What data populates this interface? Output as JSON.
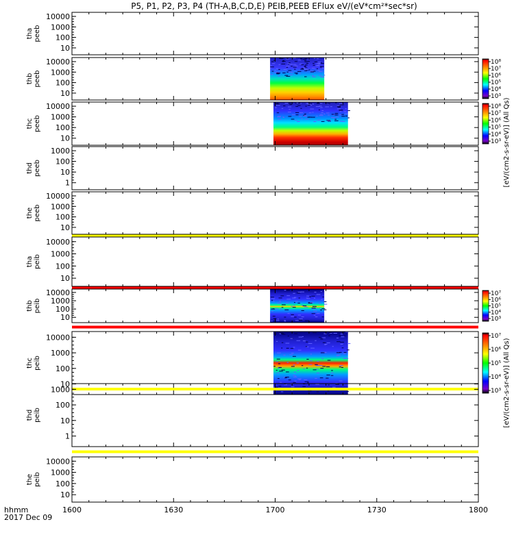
{
  "chart_data": {
    "type": "heatmap",
    "title": "P5, P1, P2, P3, P4 (TH-A,B,C,D,E) PEIB,PEEB EFlux eV/(eV*cm²*sec*sr)",
    "time_axis": {
      "label_line1": "hhmm",
      "label_line2": "2017 Dec 09",
      "ticks": [
        "1600",
        "1630",
        "1700",
        "1730",
        "1800"
      ],
      "range_minutes": [
        0,
        120
      ]
    },
    "colorbar_labels": {
      "electron": "[eV/(cm2-s-sr-eV)] (All Qs)",
      "ion": "[eV/(cm2-s-sr-eV)] (All Qs)"
    },
    "panels": [
      {
        "label": [
          "tha",
          "peeb"
        ],
        "yticks": [
          "10000",
          "1000",
          "100",
          "10"
        ],
        "blocks": [],
        "colorbar": null
      },
      {
        "label": [
          "thb",
          "peeb"
        ],
        "yticks": [
          "10000",
          "1000",
          "100",
          "10"
        ],
        "blocks": [
          {
            "start_min": 58.5,
            "end_min": 74.5,
            "palette": "electron_b"
          }
        ],
        "colorbar": {
          "ticks": [
            "10⁸",
            "10⁷",
            "10⁶",
            "10⁵",
            "10⁴",
            "10³"
          ]
        }
      },
      {
        "label": [
          "thc",
          "peeb"
        ],
        "yticks": [
          "10000",
          "1000",
          "100",
          "10"
        ],
        "blocks": [
          {
            "start_min": 59.5,
            "end_min": 81.5,
            "palette": "electron_c"
          }
        ],
        "colorbar": {
          "ticks": [
            "10⁸",
            "10⁷",
            "10⁶",
            "10⁵",
            "10⁴",
            "10³"
          ]
        }
      },
      {
        "label": [
          "thd",
          "peeb"
        ],
        "yticks": [
          "1000",
          "100",
          "10",
          "1"
        ],
        "blocks": [],
        "colorbar": null
      },
      {
        "label": [
          "the",
          "peeb"
        ],
        "yticks": [
          "10000",
          "1000",
          "100",
          "10"
        ],
        "blocks": [],
        "colorbar": null,
        "band_below": "#ffff00"
      },
      {
        "label": [
          "tha",
          "peib"
        ],
        "yticks": [
          "10000",
          "1000",
          "100",
          "10"
        ],
        "blocks": [],
        "colorbar": null,
        "band_below": "#ff0000"
      },
      {
        "label": [
          "thb",
          "peib"
        ],
        "yticks": [
          "10000",
          "1000",
          "100",
          "10"
        ],
        "blocks": [
          {
            "start_min": 58.5,
            "end_min": 74.5,
            "palette": "ion_b"
          }
        ],
        "colorbar": {
          "ticks": [
            "10⁷",
            "10⁶",
            "10⁵",
            "10⁴",
            "10³"
          ]
        },
        "band_below": "#ff0000"
      },
      {
        "label": [
          "thc",
          "peib"
        ],
        "yticks": [
          "10000",
          "1000",
          "100",
          "10"
        ],
        "blocks": [
          {
            "start_min": 59.5,
            "end_min": 81.5,
            "palette": "ion_c"
          }
        ],
        "colorbar": {
          "ticks": [
            "10⁷",
            "10⁶",
            "10⁵",
            "10⁴",
            "10³"
          ]
        },
        "band_below": "#ffff00"
      },
      {
        "label": [
          "thd",
          "peib"
        ],
        "yticks": [
          "1000",
          "100",
          "10",
          "1"
        ],
        "blocks": [],
        "colorbar": null,
        "band_below": "#ffff00"
      },
      {
        "label": [
          "the",
          "peib"
        ],
        "yticks": [
          "10000",
          "1000",
          "100",
          "10"
        ],
        "blocks": [],
        "colorbar": null
      }
    ]
  }
}
